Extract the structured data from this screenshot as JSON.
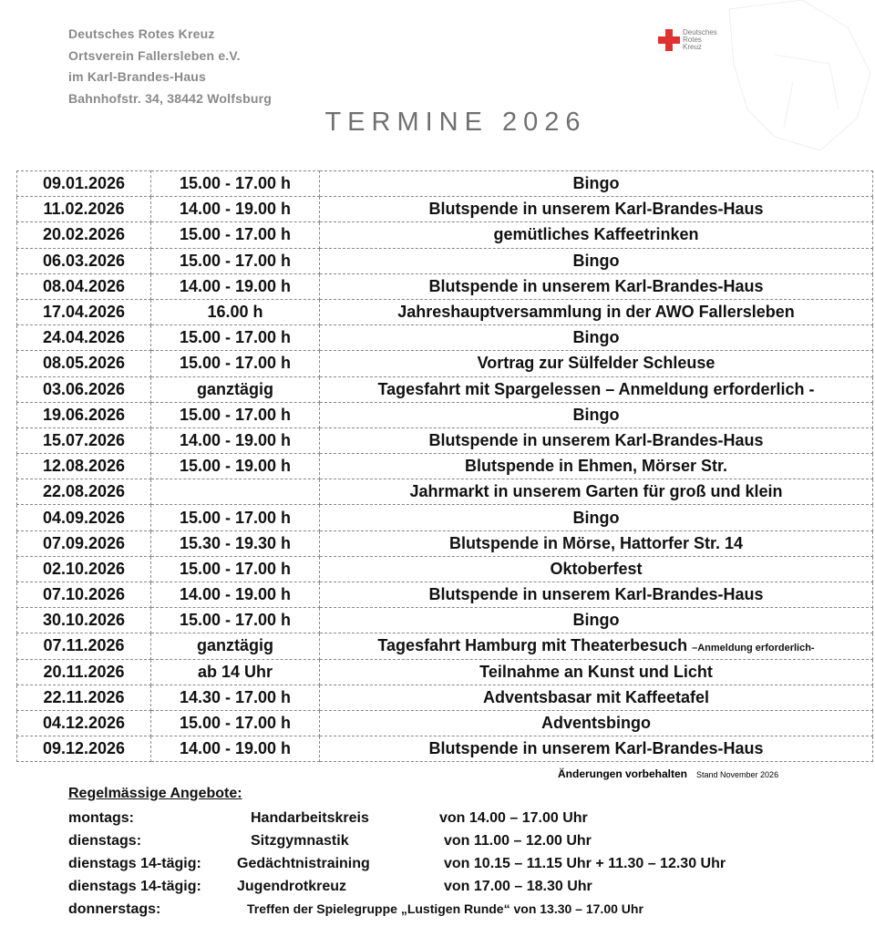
{
  "header": {
    "lines": [
      "Deutsches Rotes Kreuz",
      "Ortsverein Fallersleben e.V.",
      "im Karl-Brandes-Haus",
      "Bahnhofstr. 34, 38442 Wolfsburg"
    ],
    "logo_text": "Deutsches Rotes Kreuz",
    "title": "TERMINE 2026"
  },
  "events": [
    {
      "date": "09.01.2026",
      "time": "15.00 - 17.00 h",
      "event": "Bingo"
    },
    {
      "date": "11.02.2026",
      "time": "14.00 - 19.00 h",
      "event": "Blutspende in unserem Karl-Brandes-Haus"
    },
    {
      "date": "20.02.2026",
      "time": "15.00 - 17.00 h",
      "event": "gemütliches Kaffeetrinken"
    },
    {
      "date": "06.03.2026",
      "time": "15.00 - 17.00 h",
      "event": "Bingo"
    },
    {
      "date": "08.04.2026",
      "time": "14.00 - 19.00 h",
      "event": "Blutspende in unserem Karl-Brandes-Haus"
    },
    {
      "date": "17.04.2026",
      "time": "16.00 h",
      "event": "Jahreshauptversammlung in der  AWO Fallersleben"
    },
    {
      "date": "24.04.2026",
      "time": "15.00 - 17.00 h",
      "event": "Bingo"
    },
    {
      "date": "08.05.2026",
      "time": "15.00 - 17.00 h",
      "event": "Vortrag zur Sülfelder Schleuse"
    },
    {
      "date": "03.06.2026",
      "time": "ganztägig",
      "event": "Tagesfahrt mit Spargelessen – Anmeldung erforderlich -"
    },
    {
      "date": "19.06.2026",
      "time": "15.00 - 17.00 h",
      "event": "Bingo"
    },
    {
      "date": "15.07.2026",
      "time": "14.00 - 19.00 h",
      "event": "Blutspende in unserem Karl-Brandes-Haus"
    },
    {
      "date": "12.08.2026",
      "time": "15.00 - 19.00 h",
      "event": "Blutspende in Ehmen, Mörser Str."
    },
    {
      "date": "22.08.2026",
      "time": "",
      "event": "Jahrmarkt in unserem Garten für groß und klein"
    },
    {
      "date": "04.09.2026",
      "time": "15.00 - 17.00 h",
      "event": "Bingo"
    },
    {
      "date": "07.09.2026",
      "time": "15.30 - 19.30 h",
      "event": "Blutspende in Mörse, Hattorfer Str. 14"
    },
    {
      "date": "02.10.2026",
      "time": "15.00 - 17.00 h",
      "event": "Oktoberfest"
    },
    {
      "date": "07.10.2026",
      "time": "14.00 - 19.00 h",
      "event": "Blutspende in unserem Karl-Brandes-Haus"
    },
    {
      "date": "30.10.2026",
      "time": "15.00 - 17.00 h",
      "event": "Bingo"
    },
    {
      "date": "07.11.2026",
      "time": "ganztägig",
      "event": "Tagesfahrt Hamburg mit Theaterbesuch ",
      "note": "–Anmeldung erforderlich-"
    },
    {
      "date": "20.11.2026",
      "time": "ab 14 Uhr",
      "event": "Teilnahme an Kunst und Licht"
    },
    {
      "date": "22.11.2026",
      "time": "14.30 - 17.00 h",
      "event": "Adventsbasar mit Kaffeetafel"
    },
    {
      "date": "04.12.2026",
      "time": "15.00 - 17.00 h",
      "event": "Adventsbingo"
    },
    {
      "date": "09.12.2026",
      "time": "14.00 - 19.00 h",
      "event": "Blutspende in unserem Karl-Brandes-Haus"
    }
  ],
  "footer": {
    "changes": "Änderungen vorbehalten",
    "stand": "Stand November 2026"
  },
  "regular": {
    "heading": "Regelmässige Angebote:",
    "items": [
      {
        "day": "montags:",
        "activity": "Handarbeitskreis",
        "time": "von 14.00 – 17.00 Uhr"
      },
      {
        "day": "dienstags:",
        "activity": "Sitzgymnastik",
        "time": "von  11.00 – 12.00 Uhr"
      },
      {
        "day": "dienstags 14-tägig:",
        "activity": "Gedächtnistraining",
        "time": "von  10.15 – 11.15 Uhr + 11.30 – 12.30 Uhr"
      },
      {
        "day": "dienstags 14-tägig:",
        "activity": "Jugendrotkreuz",
        "time": "von  17.00 – 18.30 Uhr"
      },
      {
        "day": "donnerstags:",
        "activity": "Treffen der Spielegruppe „Lustigen Runde“ von 13.30 – 17.00 Uhr",
        "time": ""
      }
    ]
  },
  "colors": {
    "header_text": "#8a8a8a",
    "cross": "#e03030"
  }
}
